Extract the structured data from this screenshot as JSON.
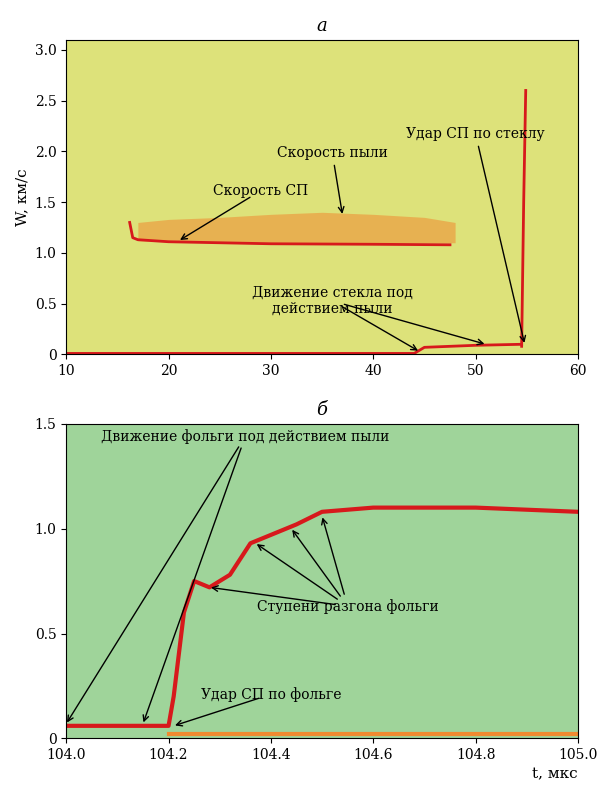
{
  "chart_data": [
    {
      "type": "line",
      "title": "a",
      "ylabel": "W, км/с",
      "xlim": [
        10,
        60
      ],
      "ylim": [
        0,
        3.1
      ],
      "xticks": [
        10,
        20,
        30,
        40,
        50,
        60
      ],
      "yticks": [
        0,
        0.5,
        1.0,
        1.5,
        2.0,
        2.5,
        3.0
      ],
      "series": [
        {
          "type": "area",
          "color": "#f08a30",
          "x": [
            17,
            20,
            25,
            30,
            35,
            40,
            45,
            48
          ],
          "low": [
            1.12,
            1.11,
            1.1,
            1.1,
            1.1,
            1.1,
            1.1,
            1.1
          ],
          "values": [
            1.3,
            1.33,
            1.35,
            1.38,
            1.4,
            1.38,
            1.35,
            1.3
          ]
        },
        {
          "type": "line",
          "color": "#d7191c",
          "line_style": "solid",
          "x": [
            16.2,
            16.5,
            17,
            20,
            25,
            30,
            40,
            47.5
          ],
          "values": [
            1.3,
            1.15,
            1.13,
            1.11,
            1.1,
            1.09,
            1.085,
            1.08
          ]
        },
        {
          "type": "line",
          "color": "#d7191c",
          "line_style": "solid",
          "x": [
            10,
            44,
            45,
            50,
            54.5
          ],
          "values": [
            0.01,
            0.01,
            0.07,
            0.09,
            0.1
          ]
        },
        {
          "type": "line",
          "color": "#d7191c",
          "line_style": "solid",
          "x": [
            54.5,
            54.7,
            54.9
          ],
          "values": [
            0.08,
            1.5,
            2.6
          ]
        }
      ],
      "annotations": [
        {
          "text": "Скорость СП",
          "points": [
            [
              21,
              1.12
            ]
          ]
        },
        {
          "text": "Скорость пыли",
          "points": [
            [
              37,
              1.37
            ]
          ]
        },
        {
          "text": "Удар СП по стеклу",
          "points": [
            [
              54.8,
              0.1
            ]
          ]
        },
        {
          "text": "Движение стекла под\nдействием пыли",
          "points": [
            [
              44.5,
              0.03
            ],
            [
              51,
              0.1
            ]
          ]
        }
      ]
    },
    {
      "type": "line",
      "title": "б",
      "xlabel": "t, мкс",
      "xlim": [
        104.0,
        105.0
      ],
      "ylim": [
        0,
        1.5
      ],
      "xticks": [
        104.0,
        104.2,
        104.4,
        104.6,
        104.8,
        105.0
      ],
      "yticks": [
        0,
        0.5,
        1.0,
        1.5
      ],
      "series": [
        {
          "type": "line",
          "color": "#f08a30",
          "line_style": "solid",
          "x": [
            104.2,
            105.0
          ],
          "values": [
            0.02,
            0.02
          ]
        },
        {
          "type": "line",
          "color": "#d7191c",
          "line_style": "solid",
          "x": [
            104.0,
            104.2,
            104.21,
            104.23,
            104.25,
            104.28,
            104.32,
            104.36,
            104.4,
            104.45,
            104.5,
            104.6,
            104.8,
            105.0
          ],
          "values": [
            0.06,
            0.06,
            0.2,
            0.6,
            0.75,
            0.72,
            0.78,
            0.93,
            0.97,
            1.02,
            1.08,
            1.1,
            1.1,
            1.08
          ]
        }
      ],
      "annotations": [
        {
          "text": "Движение фольги под действием пыли",
          "points": [
            [
              104.0,
              0.07
            ],
            [
              104.15,
              0.07
            ]
          ]
        },
        {
          "text": "Ступени разгона фольги",
          "points": [
            [
              104.28,
              0.72
            ],
            [
              104.37,
              0.93
            ],
            [
              104.44,
              1.0
            ],
            [
              104.5,
              1.06
            ]
          ]
        },
        {
          "text": "Удар СП по фольге",
          "points": [
            [
              104.21,
              0.06
            ]
          ]
        }
      ]
    }
  ]
}
